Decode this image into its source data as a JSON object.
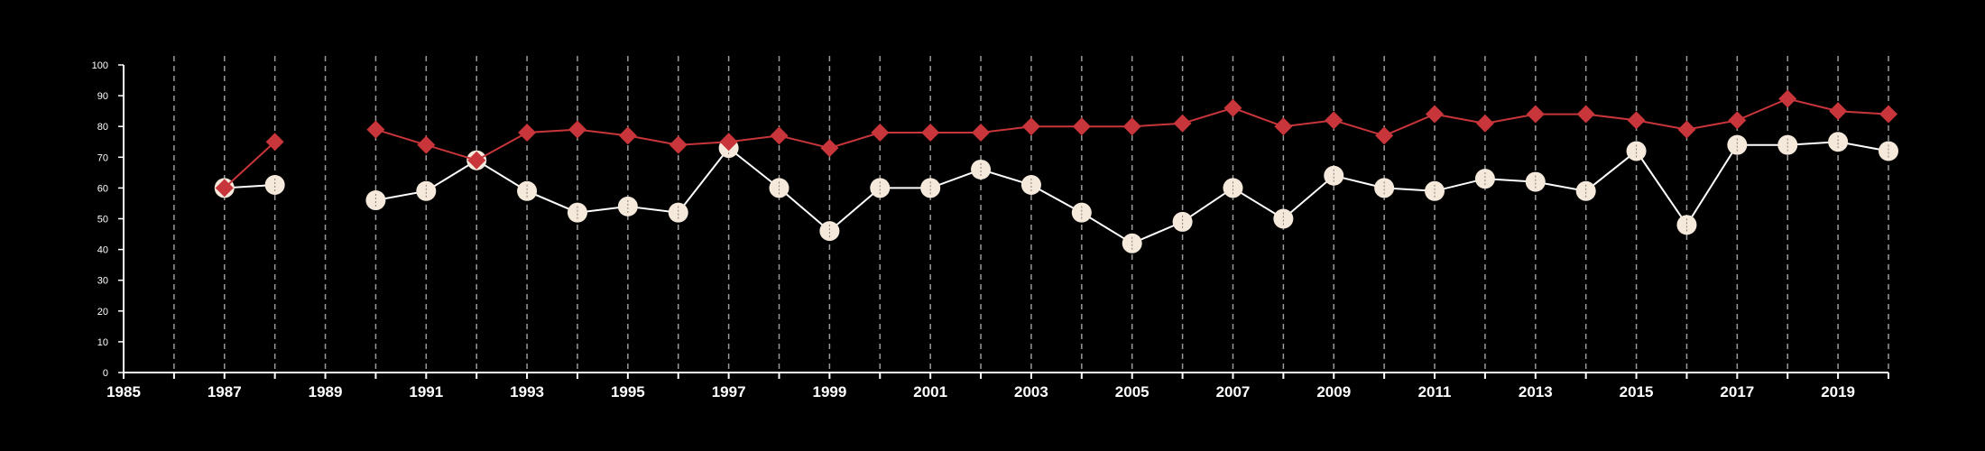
{
  "chart_data": {
    "type": "line",
    "title": "",
    "xlabel": "",
    "ylabel": "",
    "xlim": [
      1985,
      2020
    ],
    "ylim": [
      0,
      100
    ],
    "x_ticks": [
      1985,
      1987,
      1989,
      1991,
      1993,
      1995,
      1997,
      1999,
      2001,
      2003,
      2005,
      2007,
      2009,
      2011,
      2013,
      2015,
      2017,
      2019
    ],
    "y_ticks": [
      0,
      10,
      20,
      30,
      40,
      50,
      60,
      70,
      80,
      90,
      100
    ],
    "grid": "vertical dashed lines at each year",
    "legend": "none",
    "colors": {
      "background": "#000000",
      "axis": "#ffffff",
      "grid": "#9a9a9a",
      "red_series": "#c8353a",
      "white_series": "#f5e9dc",
      "white_line": "#ffffff"
    },
    "series": [
      {
        "marker": "diamond",
        "color": "#c8353a",
        "x": [
          1987,
          1988,
          1990,
          1991,
          1992,
          1993,
          1994,
          1995,
          1996,
          1997,
          1998,
          1999,
          2000,
          2001,
          2002,
          2003,
          2004,
          2005,
          2006,
          2007,
          2008,
          2009,
          2010,
          2011,
          2012,
          2013,
          2014,
          2015,
          2016,
          2017,
          2018,
          2019,
          2020
        ],
        "values": [
          60,
          75,
          79,
          74,
          69,
          78,
          79,
          77,
          74,
          75,
          77,
          73,
          78,
          78,
          78,
          80,
          80,
          80,
          81,
          86,
          80,
          82,
          77,
          84,
          81,
          84,
          84,
          82,
          79,
          82,
          89,
          85,
          84
        ]
      },
      {
        "marker": "circle",
        "color": "#f5e9dc",
        "x": [
          1987,
          1988,
          1990,
          1991,
          1992,
          1993,
          1994,
          1995,
          1996,
          1997,
          1998,
          1999,
          2000,
          2001,
          2002,
          2003,
          2004,
          2005,
          2006,
          2007,
          2008,
          2009,
          2010,
          2011,
          2012,
          2013,
          2014,
          2015,
          2016,
          2017,
          2018,
          2019,
          2020
        ],
        "values": [
          60,
          61,
          56,
          59,
          69,
          59,
          52,
          54,
          52,
          73,
          60,
          46,
          60,
          60,
          66,
          61,
          52,
          42,
          49,
          60,
          50,
          64,
          60,
          59,
          63,
          62,
          59,
          72,
          48,
          74,
          74,
          75,
          72
        ]
      }
    ]
  }
}
